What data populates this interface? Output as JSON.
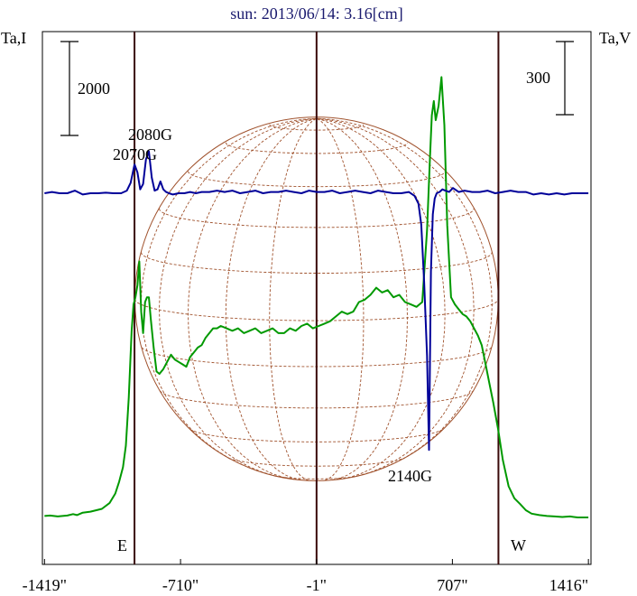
{
  "chart_data": {
    "type": "line",
    "title": "sun: 2013/06/14: 3.16[cm]",
    "left_axis_label": "Ta,I",
    "right_axis_label": "Ta,V",
    "left_scale_bar": {
      "label": "2000",
      "value": 2000
    },
    "right_scale_bar": {
      "label": "300",
      "value": 300
    },
    "x_tick_labels": [
      "-1419\"",
      "-710\"",
      "-1\"",
      "707\"",
      "1416\""
    ],
    "x_ticks": [
      -1419,
      -710,
      -1,
      707,
      1416
    ],
    "xlim": [
      -1430,
      1420
    ],
    "limb_labels": {
      "east": "E",
      "west": "W"
    },
    "vertical_markers": [
      -950,
      -1,
      947
    ],
    "disk": {
      "center_x": -1,
      "radius": 947
    },
    "colors": {
      "intensity": "#009900",
      "polarization": "#000099",
      "limb_lines": "#3a0a0a",
      "disk_grid": "#a0522d",
      "axes": "#000000"
    },
    "series": [
      {
        "name": "Ta,I",
        "color": "#009900",
        "units": "relative Ta,I (scale bar 2000)",
        "x": [
          -1419,
          -1390,
          -1350,
          -1300,
          -1270,
          -1250,
          -1220,
          -1180,
          -1120,
          -1080,
          -1050,
          -1030,
          -1010,
          -995,
          -980,
          -965,
          -955,
          -945,
          -935,
          -925,
          -915,
          -905,
          -895,
          -885,
          -875,
          -865,
          -850,
          -835,
          -820,
          -800,
          -780,
          -760,
          -740,
          -720,
          -700,
          -680,
          -660,
          -640,
          -620,
          -600,
          -580,
          -560,
          -540,
          -520,
          -500,
          -470,
          -440,
          -410,
          -380,
          -350,
          -320,
          -290,
          -260,
          -230,
          -200,
          -170,
          -140,
          -110,
          -80,
          -50,
          -20,
          10,
          40,
          70,
          100,
          130,
          160,
          190,
          220,
          250,
          280,
          310,
          340,
          370,
          400,
          430,
          460,
          490,
          520,
          550,
          575,
          590,
          600,
          610,
          620,
          635,
          650,
          665,
          680,
          700,
          720,
          740,
          760,
          780,
          800,
          820,
          840,
          860,
          880,
          900,
          920,
          945,
          970,
          1000,
          1030,
          1060,
          1090,
          1120,
          1160,
          1200,
          1240,
          1280,
          1320,
          1360,
          1400,
          1416
        ],
        "y": [
          0.03,
          0.04,
          0.02,
          0.04,
          0.07,
          0.05,
          0.1,
          0.12,
          0.18,
          0.3,
          0.5,
          0.75,
          1.05,
          1.5,
          2.5,
          3.9,
          4.45,
          4.6,
          4.85,
          5.35,
          4.3,
          3.85,
          4.5,
          4.6,
          4.6,
          4.15,
          3.55,
          3.05,
          3.0,
          3.1,
          3.25,
          3.4,
          3.3,
          3.25,
          3.2,
          3.15,
          3.35,
          3.45,
          3.55,
          3.6,
          3.75,
          3.85,
          3.95,
          3.95,
          4.0,
          3.95,
          3.9,
          3.95,
          3.85,
          3.9,
          3.95,
          3.85,
          3.9,
          3.95,
          3.85,
          3.85,
          3.95,
          3.9,
          4.0,
          4.05,
          3.95,
          4.0,
          4.05,
          4.1,
          4.2,
          4.3,
          4.25,
          4.3,
          4.5,
          4.55,
          4.65,
          4.8,
          4.7,
          4.75,
          4.6,
          4.65,
          4.5,
          4.45,
          4.4,
          4.5,
          6.0,
          7.5,
          8.4,
          8.7,
          8.3,
          8.6,
          9.2,
          8.2,
          6.1,
          4.6,
          4.45,
          4.35,
          4.25,
          4.2,
          4.1,
          3.95,
          3.8,
          3.6,
          3.2,
          2.8,
          2.4,
          1.85,
          1.2,
          0.65,
          0.4,
          0.28,
          0.15,
          0.08,
          0.05,
          0.03,
          0.02,
          0.01,
          0.02,
          0.0,
          0.0,
          0.0
        ]
      },
      {
        "name": "Ta,V",
        "color": "#000099",
        "units": "relative Ta,V (scale bar 300)",
        "x": [
          -1419,
          -1380,
          -1340,
          -1300,
          -1260,
          -1220,
          -1180,
          -1140,
          -1100,
          -1060,
          -1020,
          -990,
          -970,
          -950,
          -935,
          -920,
          -905,
          -890,
          -875,
          -860,
          -845,
          -830,
          -815,
          -800,
          -785,
          -770,
          -750,
          -720,
          -690,
          -660,
          -630,
          -600,
          -560,
          -520,
          -480,
          -440,
          -400,
          -360,
          -320,
          -280,
          -240,
          -200,
          -160,
          -120,
          -80,
          -40,
          0,
          40,
          80,
          120,
          160,
          200,
          240,
          280,
          320,
          360,
          400,
          440,
          480,
          510,
          530,
          545,
          560,
          575,
          585,
          595,
          605,
          615,
          625,
          640,
          655,
          670,
          690,
          710,
          740,
          770,
          810,
          850,
          890,
          930,
          970,
          1010,
          1050,
          1090,
          1130,
          1170,
          1210,
          1250,
          1290,
          1330,
          1370,
          1416
        ],
        "y": [
          0.0,
          0.05,
          0.0,
          0.0,
          0.1,
          -0.05,
          0.0,
          0.0,
          0.02,
          0.0,
          0.0,
          0.1,
          0.4,
          1.1,
          0.8,
          0.15,
          0.35,
          1.3,
          1.6,
          0.6,
          0.1,
          0.15,
          0.45,
          0.15,
          0.05,
          0.0,
          -0.05,
          0.0,
          0.0,
          0.05,
          0.0,
          0.05,
          0.05,
          0.1,
          0.05,
          0.1,
          0.0,
          0.05,
          0.1,
          0.0,
          0.05,
          0.05,
          0.1,
          0.05,
          0.0,
          0.1,
          0.05,
          0.05,
          0.1,
          0.0,
          0.05,
          0.1,
          0.05,
          0.0,
          0.1,
          0.05,
          0.0,
          0.0,
          0.05,
          -0.1,
          -0.4,
          -1.2,
          -3.4,
          -6.2,
          -9.8,
          -3.0,
          -0.8,
          -0.2,
          0.0,
          0.05,
          0.15,
          0.1,
          0.05,
          0.2,
          0.05,
          0.1,
          0.05,
          0.05,
          0.1,
          0.0,
          0.05,
          0.1,
          0.05,
          0.05,
          -0.05,
          0.0,
          -0.05,
          0.0,
          -0.05,
          0.0,
          0.0,
          0.0
        ]
      }
    ],
    "annotations": [
      {
        "text": "2080G"
      },
      {
        "text": "2070G"
      },
      {
        "text": "2140G"
      }
    ]
  }
}
